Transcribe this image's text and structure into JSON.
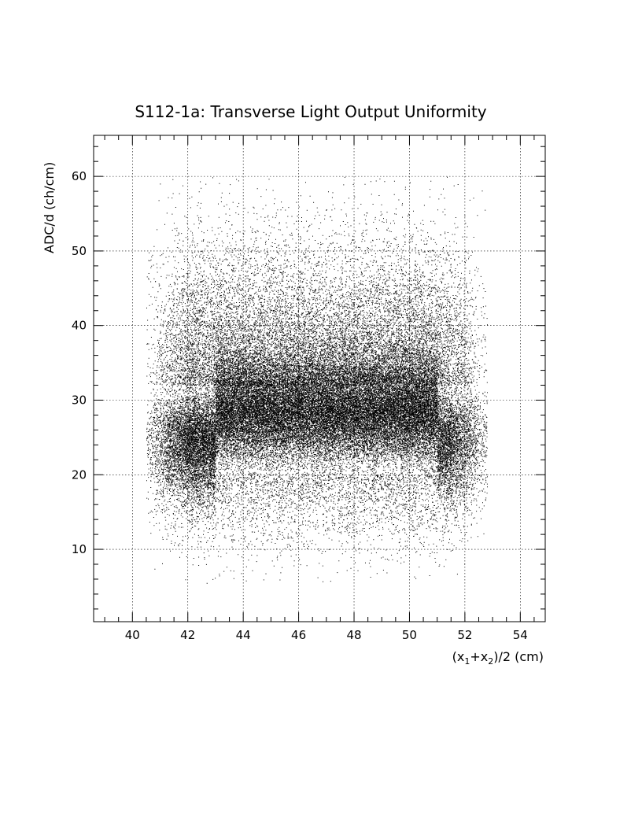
{
  "chart_data": {
    "type": "scatter",
    "title": "S112-1a: Transverse Light Output Uniformity",
    "xlabel_parts": [
      "(x",
      "1",
      "+x",
      "2",
      ")/2 (cm)"
    ],
    "ylabel": "ADC/d (ch/cm)",
    "xlim": [
      38.6,
      54.9
    ],
    "ylim": [
      0.3,
      65.5
    ],
    "x_ticks": [
      40,
      42,
      44,
      46,
      48,
      50,
      52,
      54
    ],
    "y_ticks": [
      10,
      20,
      30,
      40,
      50,
      60
    ],
    "grid": true,
    "marker_color": "#000000",
    "density_model": {
      "description": "Dense band of points; x uniform between ~40.5 and ~52.8, y concentrated between ~22 and ~35, sparse tails up to 60 and down to ~5",
      "x_range": [
        40.5,
        52.8
      ],
      "core_y_range": [
        22,
        35
      ],
      "y_max": 60,
      "y_min": 5,
      "n_points": 60000
    }
  }
}
